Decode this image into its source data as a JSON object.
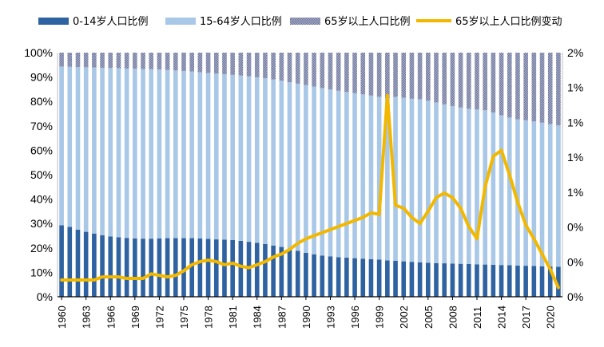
{
  "chart_data": {
    "type": "bar",
    "stacked": true,
    "percent_stacked": true,
    "categories": [
      "1960",
      "1961",
      "1962",
      "1963",
      "1964",
      "1965",
      "1966",
      "1967",
      "1968",
      "1969",
      "1970",
      "1971",
      "1972",
      "1973",
      "1974",
      "1975",
      "1976",
      "1977",
      "1978",
      "1979",
      "1980",
      "1981",
      "1982",
      "1983",
      "1984",
      "1985",
      "1986",
      "1987",
      "1988",
      "1989",
      "1990",
      "1991",
      "1992",
      "1993",
      "1994",
      "1995",
      "1996",
      "1997",
      "1998",
      "1999",
      "2000",
      "2001",
      "2002",
      "2003",
      "2004",
      "2005",
      "2006",
      "2007",
      "2008",
      "2009",
      "2010",
      "2011",
      "2012",
      "2013",
      "2014",
      "2015",
      "2016",
      "2017",
      "2018",
      "2019",
      "2020",
      "2021"
    ],
    "x_tick_labels": [
      "1960",
      "1963",
      "1966",
      "1969",
      "1972",
      "1975",
      "1978",
      "1981",
      "1984",
      "1987",
      "1990",
      "1993",
      "1996",
      "1999",
      "2002",
      "2005",
      "2008",
      "2011",
      "2014",
      "2017",
      "2020"
    ],
    "y_left": {
      "ticks": [
        "0%",
        "10%",
        "20%",
        "30%",
        "40%",
        "50%",
        "60%",
        "70%",
        "80%",
        "90%",
        "100%"
      ],
      "ylim": [
        0,
        100
      ]
    },
    "y_right": {
      "ticks": [
        "0%",
        "0%",
        "0%",
        "1%",
        "1%",
        "1%",
        "1%",
        "2%"
      ],
      "ylim": [
        0,
        1.6
      ]
    },
    "series": [
      {
        "name": "0-14岁人口比例",
        "kind": "bar",
        "axis": "left",
        "color": "#2e62a0",
        "values": [
          29.3,
          28.6,
          27.5,
          26.6,
          25.9,
          25.2,
          24.7,
          24.4,
          24.1,
          23.9,
          23.8,
          23.8,
          23.9,
          24.0,
          24.0,
          24.0,
          24.0,
          23.9,
          23.7,
          23.5,
          23.4,
          23.2,
          22.9,
          22.5,
          22.1,
          21.6,
          21.0,
          20.4,
          19.6,
          18.8,
          18.0,
          17.4,
          16.9,
          16.5,
          16.2,
          16.0,
          15.8,
          15.6,
          15.4,
          15.2,
          14.9,
          14.7,
          14.5,
          14.3,
          14.1,
          13.9,
          13.8,
          13.7,
          13.6,
          13.5,
          13.4,
          13.3,
          13.2,
          13.1,
          13.0,
          12.9,
          12.8,
          12.7,
          12.6,
          12.5,
          12.4,
          12.3
        ]
      },
      {
        "name": "15-64岁人口比例",
        "kind": "bar",
        "axis": "left",
        "color": "#a9c7e6",
        "values": [
          65.0,
          65.6,
          66.6,
          67.4,
          68.0,
          68.6,
          69.0,
          69.2,
          69.4,
          69.5,
          69.5,
          69.4,
          69.2,
          68.9,
          68.7,
          68.5,
          68.3,
          68.1,
          68.0,
          67.9,
          67.8,
          67.7,
          67.7,
          67.8,
          67.8,
          67.9,
          68.0,
          68.1,
          68.3,
          68.5,
          68.7,
          68.7,
          68.6,
          68.4,
          68.2,
          67.9,
          67.6,
          67.3,
          67.0,
          66.7,
          66.4,
          67.2,
          67.0,
          66.8,
          66.8,
          66.4,
          65.8,
          65.1,
          64.5,
          64.0,
          63.6,
          63.4,
          63.2,
          62.4,
          61.3,
          60.5,
          59.9,
          59.6,
          59.2,
          58.8,
          58.3,
          57.9
        ]
      },
      {
        "name": "65岁以上人口比例",
        "kind": "bar",
        "axis": "left",
        "color": "#8c94b4",
        "values": [
          5.7,
          5.8,
          5.9,
          6.0,
          6.1,
          6.2,
          6.3,
          6.4,
          6.5,
          6.6,
          6.7,
          6.8,
          6.9,
          7.1,
          7.3,
          7.5,
          7.7,
          8.0,
          8.3,
          8.6,
          8.8,
          9.1,
          9.4,
          9.7,
          10.1,
          10.5,
          11.0,
          11.5,
          12.1,
          12.7,
          13.3,
          13.9,
          14.5,
          15.1,
          15.6,
          16.1,
          16.6,
          17.1,
          17.6,
          18.1,
          18.7,
          18.1,
          18.5,
          18.9,
          19.1,
          19.7,
          20.4,
          21.2,
          21.9,
          22.5,
          23.0,
          23.3,
          23.6,
          24.5,
          25.7,
          26.6,
          27.3,
          27.7,
          28.2,
          28.7,
          29.3,
          29.8
        ]
      },
      {
        "name": "65岁以上人口比例变动",
        "kind": "line",
        "axis": "right",
        "color": "#f2b800",
        "values": [
          0.11,
          0.11,
          0.11,
          0.11,
          0.11,
          0.13,
          0.13,
          0.13,
          0.12,
          0.12,
          0.12,
          0.15,
          0.14,
          0.13,
          0.14,
          0.17,
          0.21,
          0.23,
          0.24,
          0.23,
          0.21,
          0.22,
          0.2,
          0.19,
          0.21,
          0.23,
          0.26,
          0.28,
          0.31,
          0.35,
          0.38,
          0.4,
          0.42,
          0.44,
          0.46,
          0.48,
          0.5,
          0.52,
          0.55,
          0.54,
          1.32,
          0.6,
          0.58,
          0.52,
          0.48,
          0.56,
          0.65,
          0.68,
          0.65,
          0.58,
          0.46,
          0.38,
          0.72,
          0.92,
          0.96,
          0.8,
          0.62,
          0.47,
          0.38,
          0.28,
          0.18,
          0.06
        ]
      }
    ],
    "legend_position": "top",
    "grid": false
  }
}
